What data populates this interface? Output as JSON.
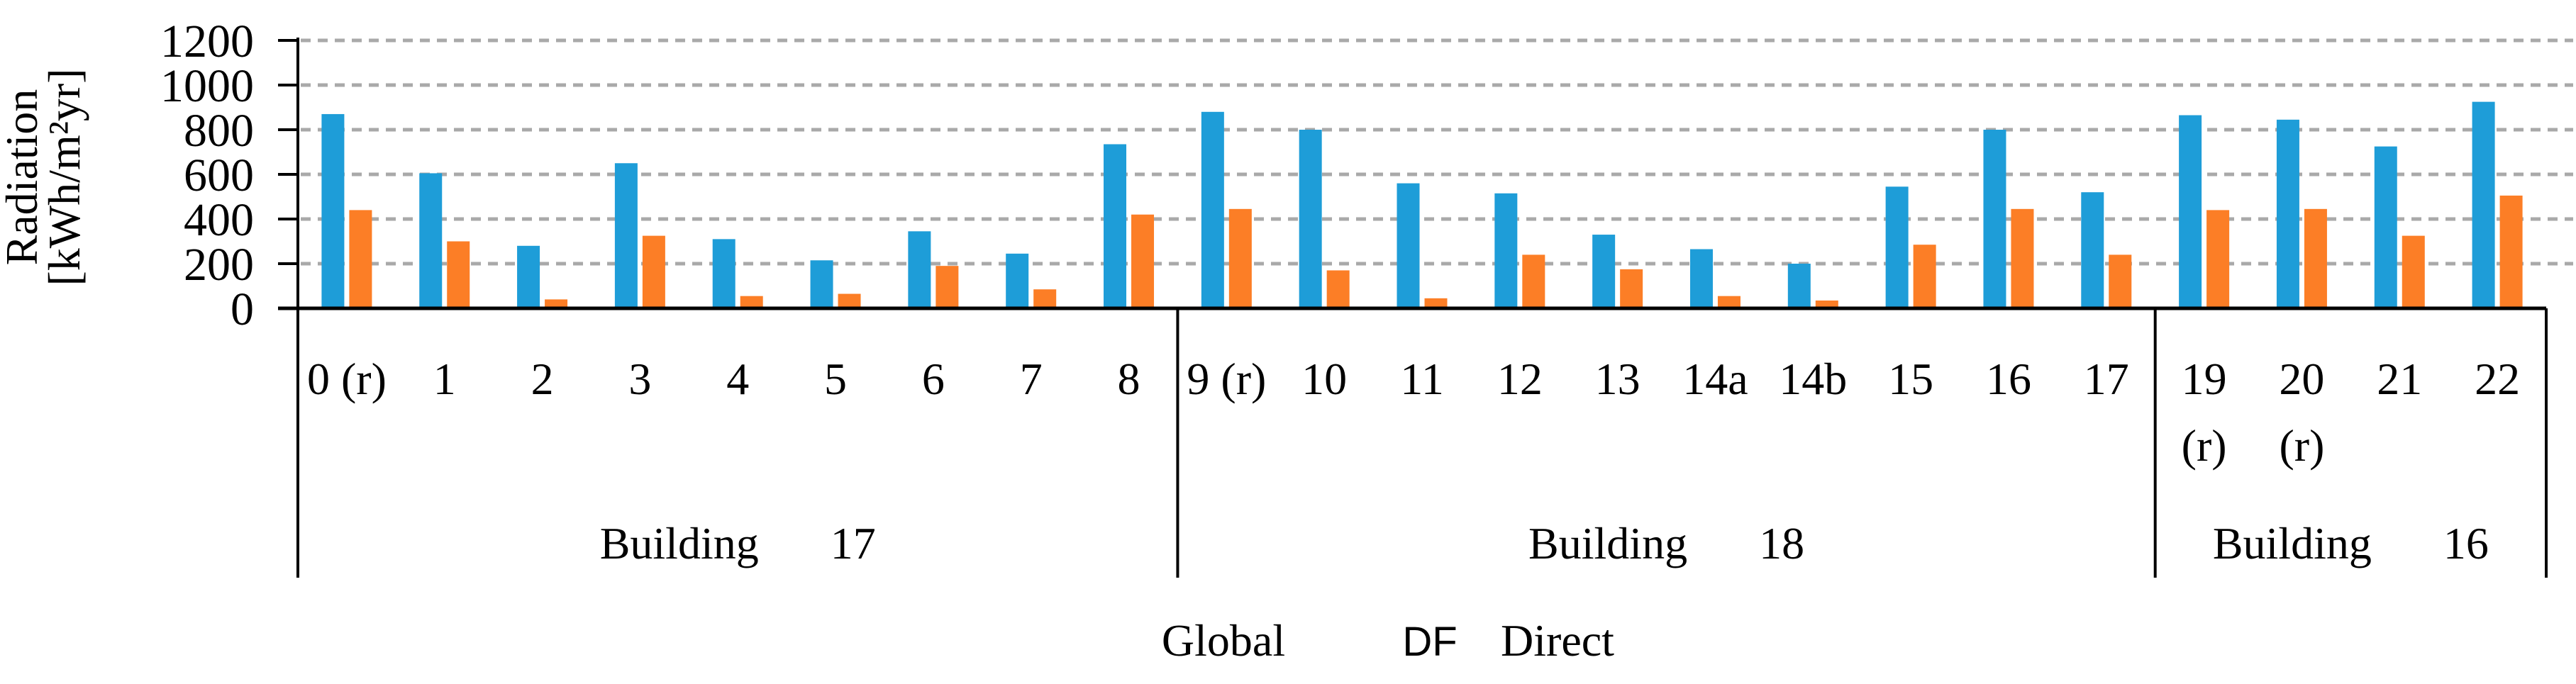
{
  "page": {
    "background": "#ffffff"
  },
  "chart_data": {
    "type": "bar",
    "title": "",
    "ylabel": "Radiation [kWh/m²yr]",
    "ylabel_lines": [
      "Radiation",
      "[kWh/m²yr]"
    ],
    "xlabel": "",
    "ylim": [
      0,
      1200
    ],
    "yticks": [
      0,
      200,
      400,
      600,
      800,
      1000,
      1200
    ],
    "grid": "horizontal-dashed",
    "gridline_color": "#A9A9A9",
    "axis_color": "#000000",
    "legend_position": "bottom-center",
    "legend": [
      {
        "label": "Global",
        "color": "#1E9DD8"
      },
      {
        "label": "Direct",
        "color": "#FC7E26"
      }
    ],
    "legend_extra_text": "DF",
    "legend_extra_color": "#8A8A8A",
    "groups": [
      {
        "label": "Building 17",
        "categories": [
          "0 (r)",
          "1",
          "2",
          "3",
          "4",
          "5",
          "6",
          "7",
          "8"
        ]
      },
      {
        "label": "Building 18",
        "categories": [
          "9 (r)",
          "10",
          "11",
          "12",
          "13",
          "14a",
          "14b",
          "15",
          "16",
          "17"
        ]
      },
      {
        "label": "Building 16",
        "categories": [
          "19 (r)",
          "20 (r)",
          "21",
          "22"
        ]
      }
    ],
    "wrapped_labels": [
      "19 (r)",
      "20 (r)"
    ],
    "series": [
      {
        "name": "Global",
        "color": "#1E9DD8",
        "values": [
          870,
          605,
          280,
          650,
          310,
          215,
          345,
          245,
          735,
          880,
          800,
          560,
          515,
          330,
          265,
          200,
          545,
          800,
          520,
          865,
          845,
          725,
          925
        ]
      },
      {
        "name": "Direct",
        "color": "#FC7E26",
        "values": [
          440,
          300,
          40,
          325,
          55,
          65,
          190,
          85,
          420,
          445,
          170,
          45,
          240,
          175,
          55,
          35,
          285,
          445,
          240,
          440,
          445,
          325,
          505
        ]
      }
    ]
  }
}
